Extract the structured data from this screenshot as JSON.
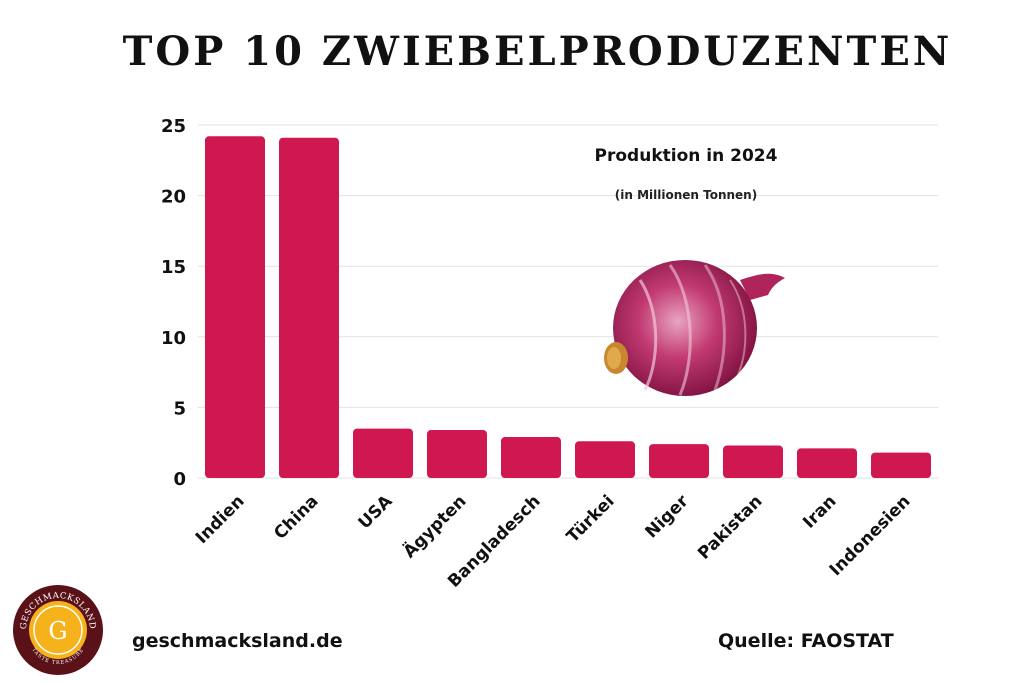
{
  "title": "TOP 10 ZWIEBELPRODUZENTEN",
  "subtitle": "Produktion in 2024",
  "unit_note": "(in Millionen Tonnen)",
  "footer": {
    "website": "geschmacksland.de",
    "source": "Quelle: FAOSTAT"
  },
  "logo": {
    "ring_text": "GESCHMACKSLAND",
    "tagline": "TASTE TREASURE",
    "letter": "G"
  },
  "colors": {
    "bar": "#cf1750",
    "grid": "#e2e2e2",
    "text": "#111111"
  },
  "chart_data": {
    "type": "bar",
    "title": "TOP 10 ZWIEBELPRODUZENTEN",
    "subtitle": "Produktion in 2024",
    "ylabel": "(in Millionen Tonnen)",
    "xlabel": "",
    "categories": [
      "Indien",
      "China",
      "USA",
      "Ägypten",
      "Bangladesch",
      "Türkei",
      "Niger",
      "Pakistan",
      "Iran",
      "Indonesien"
    ],
    "values": [
      24.2,
      24.1,
      3.5,
      3.4,
      2.9,
      2.6,
      2.4,
      2.3,
      2.1,
      1.8
    ],
    "ylim": [
      0,
      25
    ],
    "yticks": [
      0,
      5,
      10,
      15,
      20,
      25
    ],
    "grid": true,
    "legend": "none"
  }
}
